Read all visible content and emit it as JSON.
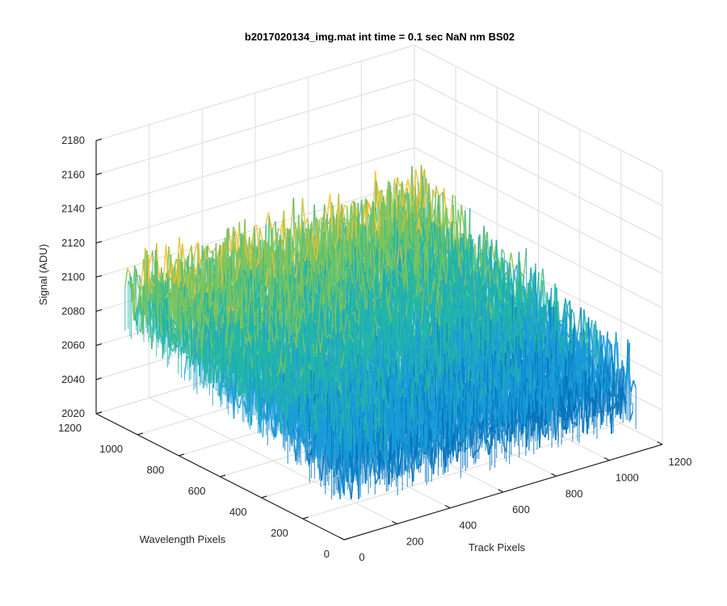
{
  "chart_data": {
    "type": "surface",
    "title": "b2017020134_img.mat int time = 0.1 sec  NaN nm BS02",
    "xlabel": "Track Pixels",
    "ylabel": "Wavelength Pixels",
    "zlabel": "Signal (ADU)",
    "xlim": [
      0,
      1200
    ],
    "ylim": [
      0,
      1200
    ],
    "zlim": [
      2020,
      2180
    ],
    "xticks": [
      "0",
      "200",
      "400",
      "600",
      "800",
      "1000",
      "1200"
    ],
    "yticks": [
      "0",
      "200",
      "400",
      "600",
      "800",
      "1000",
      "1200"
    ],
    "zticks": [
      "2020",
      "2040",
      "2060",
      "2080",
      "2100",
      "2120",
      "2140",
      "2160",
      "2180"
    ],
    "grid": true,
    "colormap": "parula",
    "data_extent": {
      "track_pixels": [
        0,
        1100
      ],
      "wavelength_pixels": [
        0,
        1060
      ]
    },
    "surface_trend": {
      "description_values": [
        {
          "track": 0,
          "wavelength": 1060,
          "signal_mean": 2100
        },
        {
          "track": 1100,
          "wavelength": 1060,
          "signal_mean": 2103
        },
        {
          "track": 0,
          "wavelength": 0,
          "signal_mean": 2065
        },
        {
          "track": 1100,
          "wavelength": 0,
          "signal_mean": 2060
        }
      ],
      "noise_amplitude": 20
    },
    "colors": [
      "#0072bd",
      "#1a9bd8",
      "#23b6a5",
      "#7cc45c",
      "#f2c12e"
    ]
  }
}
